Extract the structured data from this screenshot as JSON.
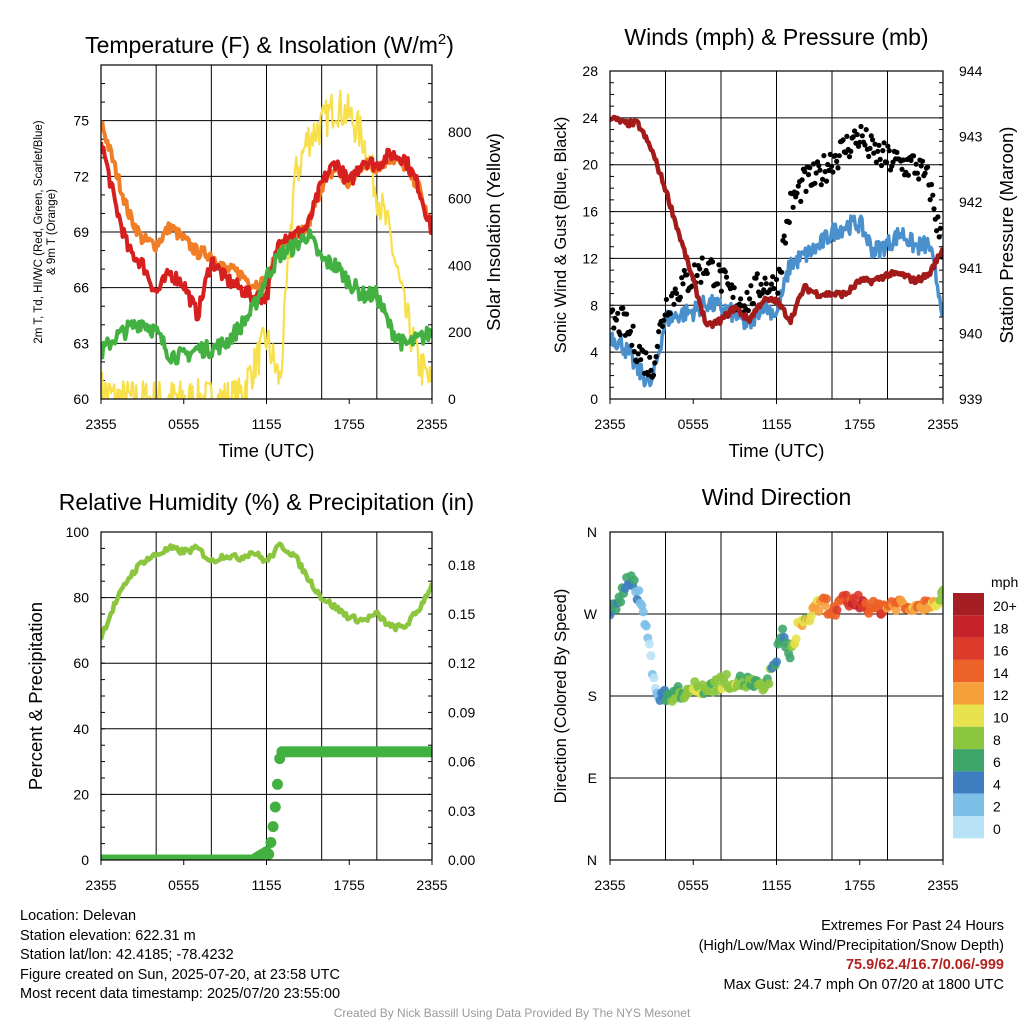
{
  "chart_data": [
    {
      "type": "line",
      "title": "Temperature (F) & Insolation (W/m²)",
      "ylabel_left": "2m T, Td, HI/WC (Red, Green, Scarlet/Blue) & 9m T (Orange)",
      "ylabel_right": "Solar Insolation (Yellow)",
      "xlabel": "Time (UTC)",
      "x_ticks": [
        "2355",
        "0555",
        "1155",
        "1755",
        "2355"
      ],
      "ylim": [
        60,
        78
      ],
      "y_ticks": [
        "60",
        "63",
        "66",
        "69",
        "72",
        "75"
      ],
      "ylim_right": [
        0,
        1000
      ],
      "y_ticks_right": [
        "0",
        "200",
        "400",
        "600",
        "800"
      ],
      "x_hours": [
        0,
        1,
        2,
        3,
        4,
        5,
        6,
        7,
        8,
        9,
        10,
        11,
        12,
        13,
        14,
        15,
        16,
        17,
        18,
        19,
        20,
        21,
        22,
        23,
        24
      ],
      "series": [
        {
          "name": "Red",
          "color": "#d62020",
          "values": [
            74,
            70.6,
            68,
            67.3,
            65.7,
            66.8,
            66.2,
            64.5,
            67.5,
            66.5,
            66,
            65.5,
            65.5,
            68.8,
            68.8,
            69.3,
            71.6,
            72.8,
            71.6,
            72.9,
            72.6,
            73.2,
            73,
            71.5,
            69
          ]
        },
        {
          "name": "Orange",
          "color": "#f07e26",
          "values": [
            75,
            72.5,
            70,
            68.6,
            68.3,
            69.3,
            68.6,
            67.9,
            67.8,
            67,
            66.8,
            66.2,
            66.3,
            68.3,
            68.5,
            69.3,
            71.5,
            72.4,
            71.5,
            72.7,
            72.5,
            73,
            72.6,
            71.5,
            69
          ]
        },
        {
          "name": "Green",
          "color": "#43b141",
          "values": [
            62.5,
            63.3,
            63.8,
            64.2,
            63.6,
            62.4,
            62.3,
            62.7,
            62.7,
            63,
            63.8,
            64.8,
            66.6,
            67.8,
            68.2,
            68.9,
            67.5,
            67.2,
            66.3,
            65.6,
            65.6,
            63.8,
            62.9,
            63.2,
            63.6
          ]
        },
        {
          "name": "Yellow",
          "color": "#f7e04b",
          "axis": "right",
          "values": [
            30,
            5,
            0,
            0,
            0,
            0,
            0,
            0,
            0,
            0,
            5,
            90,
            180,
            50,
            650,
            780,
            820,
            880,
            850,
            780,
            620,
            480,
            270,
            110,
            40
          ]
        }
      ]
    },
    {
      "type": "line",
      "title": "Winds (mph) & Pressure (mb)",
      "ylabel_left": "Sonic Wind & Gust (Blue, Black)",
      "ylabel_right": "Station Pressure (Maroon)",
      "xlabel": "Time (UTC)",
      "x_ticks": [
        "2355",
        "0555",
        "1155",
        "1755",
        "2355"
      ],
      "ylim": [
        0,
        28
      ],
      "y_ticks": [
        "0",
        "4",
        "8",
        "12",
        "16",
        "20",
        "24",
        "28"
      ],
      "ylim_right": [
        939,
        944
      ],
      "y_ticks_right": [
        "939",
        "940",
        "941",
        "942",
        "943",
        "944"
      ],
      "x_hours": [
        0,
        1,
        2,
        3,
        4,
        5,
        6,
        7,
        8,
        9,
        10,
        11,
        12,
        13,
        14,
        15,
        16,
        17,
        18,
        19,
        20,
        21,
        22,
        23,
        24
      ],
      "series": [
        {
          "name": "Blue",
          "color": "#4a90cd",
          "values": [
            5.5,
            4.5,
            2.5,
            1.2,
            6.8,
            7.2,
            7.5,
            8.2,
            7.8,
            7.2,
            6.2,
            8.2,
            7.2,
            11.5,
            12.2,
            13,
            14.2,
            14.8,
            15,
            12.6,
            13.2,
            14.2,
            13,
            13.2,
            7.5
          ]
        },
        {
          "name": "Black",
          "color": "#000000",
          "marker": "dot",
          "values": [
            6.5,
            6.5,
            4.2,
            2.5,
            8,
            9.5,
            10.5,
            11.5,
            10.2,
            8.5,
            8.5,
            10,
            9.5,
            16.5,
            18.5,
            19,
            20.5,
            21.5,
            22.5,
            21,
            20.5,
            20,
            20,
            18.5,
            12.5
          ]
        },
        {
          "name": "Maroon",
          "color": "#a31a1a",
          "axis": "right",
          "values": [
            943.3,
            943.2,
            943.2,
            942.8,
            942.2,
            941.5,
            940.8,
            940.1,
            940.2,
            940.4,
            940.2,
            940.5,
            940.5,
            940.2,
            940.7,
            940.6,
            940.6,
            940.6,
            940.8,
            940.8,
            940.9,
            940.9,
            940.8,
            940.9,
            941.3
          ]
        }
      ]
    },
    {
      "type": "line",
      "title": "Relative Humidity (%) & Precipitation (in)",
      "ylabel_left": "Percent & Precipitation",
      "x_ticks": [
        "2355",
        "0555",
        "1155",
        "1755",
        "2355"
      ],
      "ylim": [
        0,
        100
      ],
      "y_ticks": [
        "0",
        "20",
        "40",
        "60",
        "80",
        "100"
      ],
      "ylim_right": [
        0,
        0.2
      ],
      "y_ticks_right": [
        "0.00",
        "0.03",
        "0.06",
        "0.09",
        "0.12",
        "0.15",
        "0.18"
      ],
      "x_hours": [
        0,
        1,
        2,
        3,
        4,
        5,
        6,
        7,
        8,
        9,
        10,
        11,
        12,
        13,
        14,
        15,
        16,
        17,
        18,
        19,
        20,
        21,
        22,
        23,
        24
      ],
      "series": [
        {
          "name": "Light green",
          "color": "#8cc63f",
          "values": [
            68,
            78,
            86,
            91,
            93,
            95,
            94,
            95,
            91,
            93,
            92,
            94,
            91,
            96,
            93,
            86,
            80,
            77,
            74,
            73,
            75,
            71,
            71,
            76,
            84
          ]
        },
        {
          "name": "Green dots",
          "color": "#43b141",
          "axis": "right",
          "marker": "dot",
          "values": [
            0,
            0,
            0,
            0,
            0,
            0,
            0,
            0,
            0,
            0,
            0,
            0,
            0.005,
            0.066,
            0.066,
            0.066,
            0.066,
            0.066,
            0.066,
            0.066,
            0.066,
            0.066,
            0.066,
            0.066,
            0.066
          ]
        }
      ]
    },
    {
      "type": "scatter",
      "title": "Wind Direction",
      "ylabel": "Direction (Colored By Speed)",
      "x_ticks": [
        "2355",
        "0555",
        "1155",
        "1755",
        "2355"
      ],
      "y_ticks": [
        "N",
        "E",
        "S",
        "W",
        "N"
      ],
      "ylim": [
        0,
        360
      ],
      "x_hours": [
        0,
        0.5,
        1,
        1.5,
        2,
        2.5,
        3,
        3.5,
        4,
        4.5,
        5,
        5.5,
        6,
        6.5,
        7,
        7.5,
        8,
        8.5,
        9,
        9.5,
        10,
        10.5,
        11,
        11.5,
        12,
        12.5,
        13,
        13.5,
        14,
        14.5,
        15,
        15.5,
        16,
        16.5,
        17,
        17.5,
        18,
        18.5,
        19,
        19.5,
        20,
        20.5,
        21,
        21.5,
        22,
        22.5,
        23,
        23.5,
        24
      ],
      "directions": [
        272,
        276,
        300,
        312,
        292,
        265,
        215,
        178,
        180,
        182,
        183,
        186,
        188,
        189,
        190,
        192,
        195,
        196,
        196,
        195,
        195,
        192,
        186,
        200,
        225,
        250,
        220,
        256,
        262,
        268,
        278,
        283,
        270,
        278,
        285,
        283,
        284,
        280,
        276,
        277,
        279,
        282,
        281,
        275,
        282,
        279,
        284,
        286,
        290
      ],
      "speeds": [
        4,
        4,
        6,
        5,
        3,
        2,
        1,
        3,
        5,
        7,
        7,
        8,
        8,
        8,
        8,
        8,
        8,
        8,
        8,
        7,
        8,
        7,
        7,
        6,
        5,
        4,
        7,
        9,
        10,
        11,
        12,
        13,
        14,
        14,
        15,
        16,
        17,
        15,
        14,
        16,
        13,
        14,
        13,
        13,
        12,
        13,
        12,
        11,
        8
      ],
      "legend": {
        "title": "mph",
        "labels": [
          "20+",
          "18",
          "16",
          "14",
          "12",
          "10",
          "8",
          "6",
          "4",
          "2",
          "0"
        ],
        "colors": [
          "#a51e23",
          "#c6222a",
          "#dc3a2a",
          "#ec6227",
          "#f6a03c",
          "#e8e24e",
          "#8cc63f",
          "#3fa66a",
          "#3e7ec0",
          "#7cc0e8",
          "#b8e2f5"
        ],
        "placement": "right"
      }
    }
  ],
  "info": {
    "location": "Location: Delevan",
    "elevation": "Station elevation: 622.31 m",
    "latlon": "Station lat/lon: 42.4185; -78.4232",
    "created": "Figure created on Sun, 2025-07-20, at 23:58 UTC",
    "recent": "Most recent data timestamp: 2025/07/20 23:55:00"
  },
  "extremes": {
    "title": "Extremes For Past 24 Hours",
    "subtitle": "(High/Low/Max Wind/Precipitation/Snow Depth)",
    "values": "75.9/62.4/16.7/0.06/-999",
    "gust": "Max Gust: 24.7 mph On 07/20 at 1800 UTC"
  },
  "credit": "Created By Nick Bassill Using Data Provided By The NYS Mesonet"
}
